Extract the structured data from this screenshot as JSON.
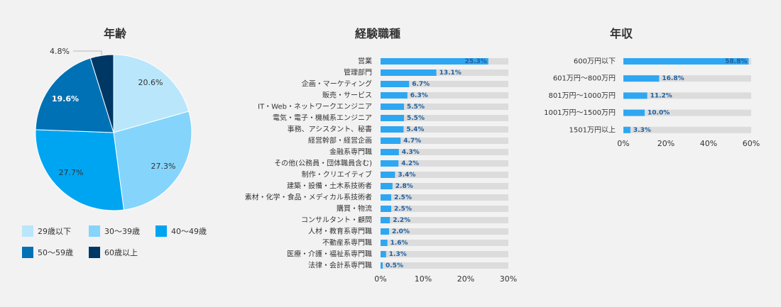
{
  "chart_data": [
    {
      "type": "pie",
      "title": "年齢",
      "categories": [
        "29歳以下",
        "30〜39歳",
        "40〜49歳",
        "50〜59歳",
        "60歳以上"
      ],
      "values": [
        20.6,
        27.3,
        27.7,
        19.6,
        4.8
      ],
      "value_labels": [
        "20.6%",
        "27.3%",
        "27.7%",
        "19.6%",
        "4.8%"
      ],
      "colors": [
        "#b9e6fb",
        "#85d4fb",
        "#00a5f2",
        "#0071b5",
        "#003865"
      ],
      "legend": "bottom"
    },
    {
      "type": "bar",
      "orientation": "horizontal",
      "title": "経験職種",
      "categories": [
        "営業",
        "管理部門",
        "企画・マーケティング",
        "販売・サービス",
        "IT・Web・ネットワークエンジニア",
        "電気・電子・機械系エンジニア",
        "事務、アシスタント、秘書",
        "経営幹部・経営企画",
        "金融系専門職",
        "その他(公務員・団体職員含む)",
        "制作・クリエイティブ",
        "建築・設備・土木系技術者",
        "素材・化学・食品・メディカル系技術者",
        "購買・物流",
        "コンサルタント・顧問",
        "人材・教育系専門職",
        "不動産系専門職",
        "医療・介護・福祉系専門職",
        "法律・会計系専門職"
      ],
      "values": [
        25.3,
        13.1,
        6.7,
        6.3,
        5.5,
        5.5,
        5.4,
        4.7,
        4.3,
        4.2,
        3.4,
        2.8,
        2.5,
        2.5,
        2.2,
        2.0,
        1.6,
        1.3,
        0.5
      ],
      "value_labels": [
        "25.3%",
        "13.1%",
        "6.7%",
        "6.3%",
        "5.5%",
        "5.5%",
        "5.4%",
        "4.7%",
        "4.3%",
        "4.2%",
        "3.4%",
        "2.8%",
        "2.5%",
        "2.5%",
        "2.2%",
        "2.0%",
        "1.6%",
        "1.3%",
        "0.5%"
      ],
      "xlim": [
        0,
        30
      ],
      "xticks": [
        "0%",
        "10%",
        "20%",
        "30%"
      ],
      "bar_color": "#2ea7f2",
      "track_color": "#dcdcdc",
      "label_color": "#1f5f9e"
    },
    {
      "type": "bar",
      "orientation": "horizontal",
      "title": "年収",
      "categories": [
        "600万円以下",
        "601万円〜800万円",
        "801万円〜1000万円",
        "1001万円〜1500万円",
        "1501万円以上"
      ],
      "values": [
        58.8,
        16.8,
        11.2,
        10.0,
        3.3
      ],
      "value_labels": [
        "58.8%",
        "16.8%",
        "11.2%",
        "10.0%",
        "3.3%"
      ],
      "xlim": [
        0,
        60
      ],
      "xticks": [
        "0%",
        "20%",
        "40%",
        "60%"
      ],
      "bar_color": "#2ea7f2",
      "track_color": "#dcdcdc",
      "label_color": "#1f5f9e"
    }
  ]
}
